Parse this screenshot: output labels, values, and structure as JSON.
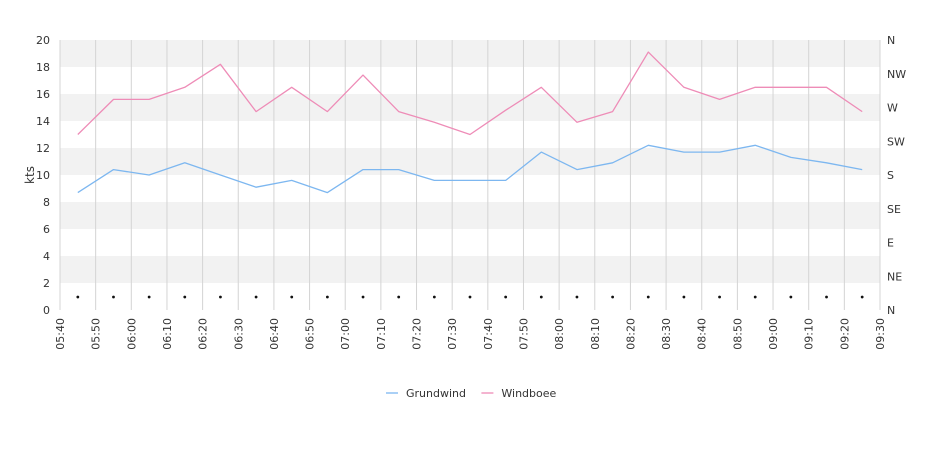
{
  "chart_data": {
    "type": "line",
    "ylabel": "kts",
    "ylim": [
      0,
      20
    ],
    "y_ticks": [
      "0",
      "2",
      "4",
      "6",
      "8",
      "10",
      "12",
      "14",
      "16",
      "18",
      "20"
    ],
    "direction_ticks": [
      "N",
      "NE",
      "E",
      "SE",
      "S",
      "SW",
      "W",
      "NW",
      "N"
    ],
    "x_range": [
      "05:40",
      "09:30"
    ],
    "x_ticks": [
      "05:40",
      "05:50",
      "06:00",
      "06:10",
      "06:20",
      "06:30",
      "06:40",
      "06:50",
      "07:00",
      "07:10",
      "07:20",
      "07:30",
      "07:40",
      "07:50",
      "08:00",
      "08:10",
      "08:20",
      "08:30",
      "08:40",
      "08:50",
      "09:00",
      "09:10",
      "09:20",
      "09:30"
    ],
    "x": [
      "05:45",
      "05:55",
      "06:05",
      "06:15",
      "06:25",
      "06:35",
      "06:45",
      "06:55",
      "07:05",
      "07:15",
      "07:25",
      "07:35",
      "07:45",
      "07:55",
      "08:05",
      "08:15",
      "08:25",
      "08:35",
      "08:45",
      "08:55",
      "09:05",
      "09:15",
      "09:25"
    ],
    "series": [
      {
        "name": "Grundwind",
        "color": "#7db7f0",
        "values": [
          8.7,
          10.4,
          10.0,
          10.9,
          10.0,
          9.1,
          9.6,
          8.7,
          10.4,
          10.4,
          9.6,
          9.6,
          9.6,
          11.7,
          10.4,
          10.9,
          12.2,
          11.7,
          11.7,
          12.2,
          11.3,
          10.9,
          10.4
        ]
      },
      {
        "name": "Windboee",
        "color": "#ee8cb7",
        "values": [
          13.0,
          15.6,
          15.6,
          16.5,
          18.2,
          14.7,
          16.5,
          14.7,
          17.4,
          14.7,
          13.9,
          13.0,
          14.8,
          16.5,
          13.9,
          14.7,
          19.1,
          16.5,
          15.6,
          16.5,
          16.5,
          16.5,
          14.7
        ]
      }
    ],
    "direction": {
      "value": 17.3,
      "label": "N"
    },
    "grid": true,
    "legend": "bottom-center"
  }
}
